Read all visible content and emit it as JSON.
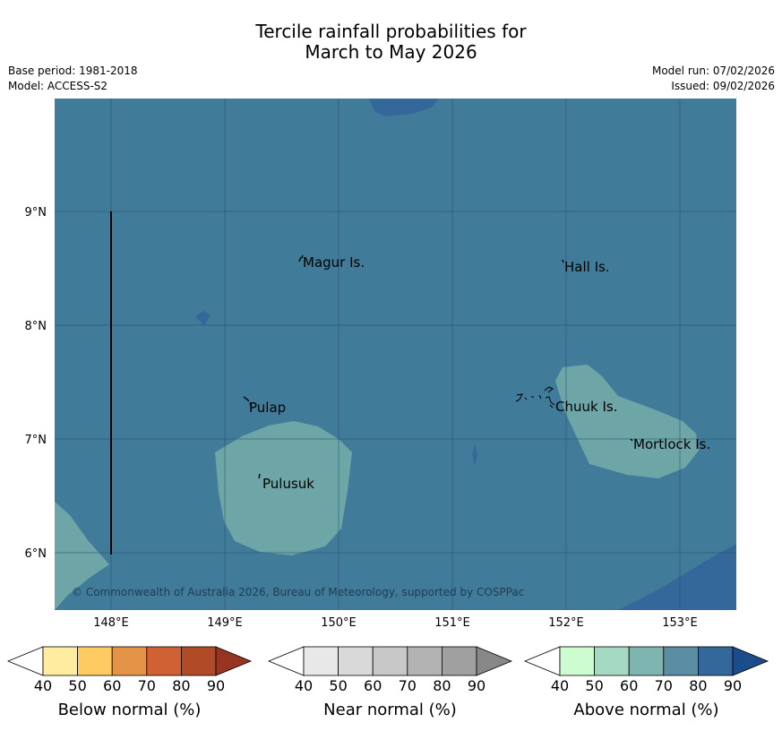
{
  "header": {
    "title_line1": "Tercile rainfall probabilities for",
    "title_line2": "March to May 2026",
    "base_period": "Base period: 1981-2018",
    "model": "Model: ACCESS-S2",
    "model_run": "Model run: 07/02/2026",
    "issued": "Issued: 09/02/2026"
  },
  "map": {
    "lat_labels": [
      "9°N",
      "8°N",
      "7°N",
      "6°N"
    ],
    "lon_labels": [
      "148°E",
      "149°E",
      "150°E",
      "151°E",
      "152°E",
      "153°E"
    ],
    "places": {
      "magur": "Magur Is.",
      "hall": "Hall Is.",
      "pulap": "Pulap",
      "chuuk": "Chuuk Is.",
      "mortlock": "Mortlock Is.",
      "pulusuk": "Pulusuk"
    },
    "copyright": "© Commonwealth of Australia 2026, Bureau of Meteorology, supported by COSPPac",
    "colors": {
      "ocean_above_70": "#417b9a",
      "above_80": "#35689a",
      "above_60": "#6ea5a6"
    }
  },
  "legends": [
    {
      "label": "Below normal (%)",
      "ticks": [
        "40",
        "50",
        "60",
        "70",
        "80",
        "90"
      ],
      "colors": [
        "#ffffff",
        "#ffeca0",
        "#fdcb62",
        "#e39447",
        "#cf6134",
        "#b04a27",
        "#983422"
      ]
    },
    {
      "label": "Near normal (%)",
      "ticks": [
        "40",
        "50",
        "60",
        "70",
        "80",
        "90"
      ],
      "colors": [
        "#ffffff",
        "#e8e8e8",
        "#d9d9d9",
        "#c8c8c8",
        "#b3b3b3",
        "#a0a0a0",
        "#888888"
      ]
    },
    {
      "label": "Above normal (%)",
      "ticks": [
        "40",
        "50",
        "60",
        "70",
        "80",
        "90"
      ],
      "colors": [
        "#ffffff",
        "#ccfccf",
        "#a6d9c2",
        "#7fb5b1",
        "#5b8ea3",
        "#35689a",
        "#1b4d8a"
      ]
    }
  ]
}
